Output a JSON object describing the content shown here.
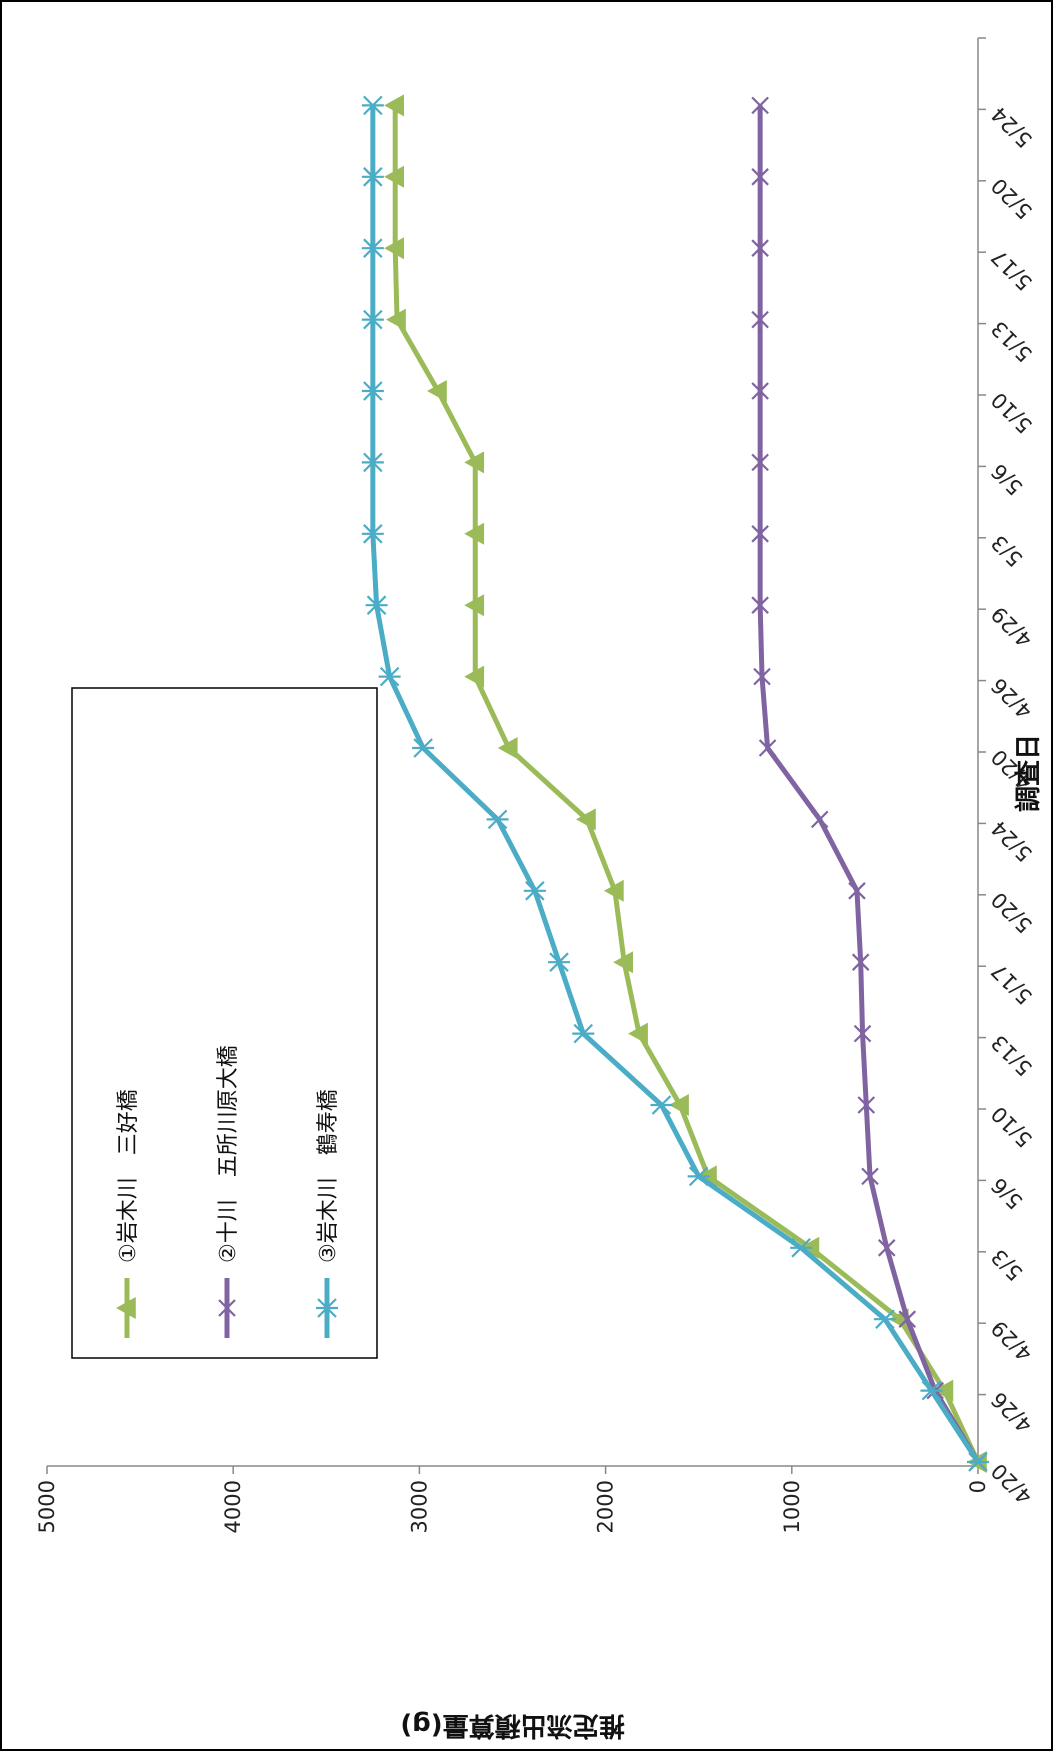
{
  "chart_data": {
    "type": "line",
    "ylabel": "推定流出積算量(g)",
    "xlabel": "調査日",
    "ylim": [
      0,
      5000
    ],
    "yticks": [
      0,
      1000,
      2000,
      3000,
      4000,
      5000
    ],
    "categories": [
      "4/20",
      "4/26",
      "4/29",
      "5/3",
      "5/6",
      "5/10",
      "5/13",
      "5/17",
      "5/20",
      "5/24",
      "4/20",
      "4/26",
      "4/29",
      "5/3",
      "5/6",
      "5/10",
      "5/13",
      "5/17",
      "5/20",
      "5/24"
    ],
    "grid": false,
    "legend_position": "top-left",
    "series": [
      {
        "name": "①岩木川　三好橋",
        "color": "#9bbb59",
        "marker": "triangle",
        "values": [
          0,
          180,
          420,
          900,
          1450,
          1600,
          1820,
          1900,
          1950,
          2100,
          2520,
          2700,
          2700,
          2700,
          2700,
          2900,
          3120,
          3130,
          3130,
          3130
        ]
      },
      {
        "name": "②十川　五所川原大橋",
        "color": "#8064a2",
        "marker": "x",
        "values": [
          0,
          230,
          380,
          490,
          580,
          600,
          620,
          630,
          650,
          850,
          1130,
          1160,
          1170,
          1170,
          1170,
          1170,
          1170,
          1170,
          1170,
          1170
        ]
      },
      {
        "name": "③岩木川　鶴寿橋",
        "color": "#4bacc6",
        "marker": "asterisk",
        "values": [
          0,
          250,
          500,
          950,
          1500,
          1700,
          2120,
          2250,
          2380,
          2580,
          2980,
          3160,
          3230,
          3250,
          3250,
          3250,
          3250,
          3250,
          3250,
          3250
        ]
      }
    ]
  }
}
